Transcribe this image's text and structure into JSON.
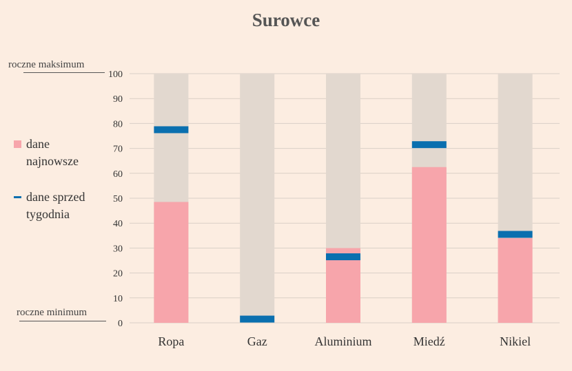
{
  "chart_data": {
    "type": "bar",
    "title": "Surowce",
    "categories": [
      "Ropa",
      "Gaz",
      "Aluminium",
      "Miedź",
      "Nikiel"
    ],
    "series": [
      {
        "name": "dane najnowsze",
        "values": [
          48.5,
          0,
          30,
          62.5,
          34
        ]
      },
      {
        "name": "dane sprzed tygodnia",
        "values": [
          77.5,
          1.5,
          26.5,
          71.5,
          35.5
        ]
      }
    ],
    "range": {
      "min": 0,
      "max": 100
    },
    "ylim": [
      0,
      100
    ],
    "yticks": [
      0,
      10,
      20,
      30,
      40,
      50,
      60,
      70,
      80,
      90,
      100
    ],
    "annotations": {
      "max_label": "roczne maksimum",
      "min_label": "roczne minimum"
    },
    "legend": {
      "items": [
        "dane najnowsze",
        "dane sprzed tygodnia"
      ],
      "placement": "left"
    },
    "grid": true,
    "colors": {
      "range": "#e2d8cf",
      "latest": "#f7a5ab",
      "week_ago": "#0a6faf",
      "grid": "#d9cfc6",
      "background": "#fcede1"
    }
  }
}
